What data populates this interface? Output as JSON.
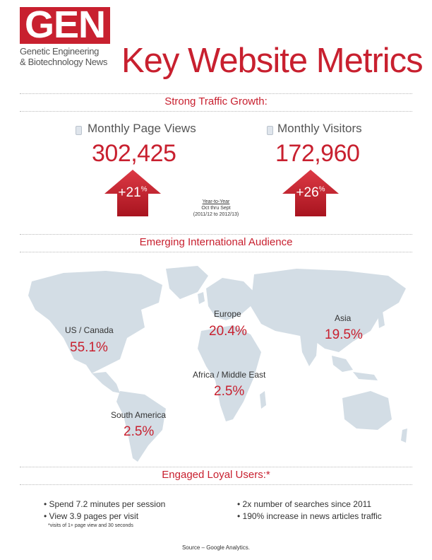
{
  "logo": {
    "text": "GEN",
    "sub_line1": "Genetic Engineering",
    "sub_line2": "& Biotechnology News"
  },
  "title": "Key Website Metrics",
  "sections": {
    "traffic": "Strong Traffic Growth:",
    "international": "Emerging International Audience",
    "engaged": "Engaged Loyal Users:*"
  },
  "metrics": [
    {
      "label": "Monthly Page Views",
      "value": "302,425",
      "change_num": "+21",
      "change_pct": "%"
    },
    {
      "label": "Monthly Visitors",
      "value": "172,960",
      "change_num": "+26",
      "change_pct": "%"
    }
  ],
  "year_to_year": {
    "line1": "Year-to-Year",
    "line2": "Oct thru Sept",
    "line3": "(2011/12 to 2012/13)"
  },
  "regions": [
    {
      "name": "US / Canada",
      "value": "55.1%"
    },
    {
      "name": "Europe",
      "value": "20.4%"
    },
    {
      "name": "Asia",
      "value": "19.5%"
    },
    {
      "name": "Africa / Middle East",
      "value": "2.5%"
    },
    {
      "name": "South America",
      "value": "2.5%"
    }
  ],
  "bullets_left": [
    "• Spend 7.2 minutes per session",
    "• View 3.9 pages per visit"
  ],
  "bullets_note": "*visits of 1+ page view and 30 seconds",
  "bullets_right": [
    "• 2x number of searches since 2011",
    "• 190% increase in news articles traffic"
  ],
  "source": "Source – Google Analytics.",
  "colors": {
    "accent": "#c8202f",
    "map": "#d3dde5",
    "arrow": "#c8202f"
  }
}
